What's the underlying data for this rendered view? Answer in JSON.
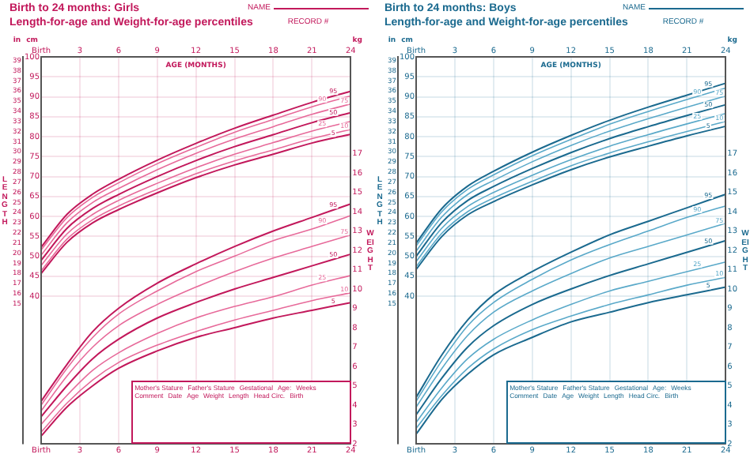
{
  "chart_data": [
    {
      "type": "line",
      "title": "Birth to 24 months: Girls",
      "subtitle": "Length-for-age and Weight-for-age percentiles",
      "xlabel": "AGE (MONTHS)",
      "ylabel": "cm",
      "y2label": "kg",
      "y3label": "in",
      "annotations": [
        "NAME",
        "RECORD #",
        "LENGTH",
        "WEIGHT",
        "Mother's Stature",
        "Father's Stature",
        "Gestational",
        "Age:",
        "Weeks",
        "Comment",
        "Date",
        "Age",
        "Weight",
        "Length",
        "Head Circ.",
        "Birth"
      ],
      "x": [
        0,
        2,
        4,
        6,
        9,
        12,
        15,
        18,
        21,
        24
      ],
      "xlim": [
        0,
        24
      ],
      "xticks": [
        {
          "value": 0,
          "label": "Birth"
        },
        3,
        6,
        9,
        12,
        15,
        18,
        21,
        24
      ],
      "x2lim": [
        0,
        24
      ],
      "x2ticks": [
        {
          "value": 0,
          "label": "Birth"
        },
        3,
        6,
        9,
        12,
        15,
        18,
        21,
        24
      ],
      "ylim": [
        3,
        100
      ],
      "yticks": [
        40,
        45,
        50,
        55,
        60,
        65,
        70,
        75,
        80,
        85,
        90,
        95,
        100
      ],
      "y2lim": [
        2,
        22
      ],
      "y2ticks": [
        2,
        3,
        4,
        5,
        6,
        7,
        8,
        9,
        10,
        11,
        12,
        13,
        14,
        15,
        16,
        17
      ],
      "y3lim": [
        1.181,
        39.37
      ],
      "y3ticks": [
        15,
        16,
        17,
        18,
        19,
        20,
        21,
        22,
        23,
        24,
        25,
        26,
        27,
        28,
        29,
        30,
        31,
        32,
        33,
        34,
        35,
        36,
        37,
        38,
        39
      ],
      "grid": true,
      "legend": false,
      "marker": "none",
      "line_style": "solid",
      "series": [
        {
          "name": "95",
          "color": "#c2185b",
          "axis": "y",
          "values": [
            52.3,
            60.5,
            65.6,
            69.3,
            74.1,
            78.3,
            82.1,
            85.4,
            88.6,
            91.4
          ]
        },
        {
          "name": "90",
          "color": "#e76a9a",
          "axis": "y",
          "values": [
            51.6,
            59.7,
            64.8,
            68.4,
            73.2,
            77.3,
            81.1,
            84.3,
            87.5,
            90.2
          ]
        },
        {
          "name": "75",
          "color": "#e76a9a",
          "axis": "y",
          "values": [
            50.3,
            58.4,
            63.5,
            67.0,
            71.7,
            75.8,
            79.4,
            82.5,
            85.6,
            88.2
          ]
        },
        {
          "name": "50",
          "color": "#c2185b",
          "axis": "y",
          "values": [
            49,
            57,
            62,
            65.5,
            70,
            74,
            77.5,
            80.5,
            83.5,
            86
          ]
        },
        {
          "name": "25",
          "color": "#e76a9a",
          "axis": "y",
          "values": [
            47.7,
            55.6,
            60.5,
            64.0,
            68.3,
            72.2,
            75.6,
            78.5,
            81.4,
            83.8
          ]
        },
        {
          "name": "10",
          "color": "#e76a9a",
          "axis": "y",
          "values": [
            46.4,
            54.3,
            59.2,
            62.6,
            66.8,
            70.7,
            73.9,
            76.7,
            79.5,
            81.8
          ]
        },
        {
          "name": "5",
          "color": "#c2185b",
          "axis": "y",
          "values": [
            45.7,
            53.5,
            58.4,
            61.7,
            65.9,
            69.7,
            72.9,
            75.6,
            78.4,
            80.6
          ]
        },
        {
          "name": "95",
          "color": "#c2185b",
          "axis": "y2",
          "values": [
            4.2,
            6.1,
            7.8,
            9.0,
            10.3,
            11.3,
            12.2,
            13.0,
            13.7,
            14.4
          ]
        },
        {
          "name": "90",
          "color": "#e76a9a",
          "axis": "y2",
          "values": [
            4.0,
            5.9,
            7.5,
            8.7,
            9.9,
            10.9,
            11.7,
            12.5,
            13.1,
            13.8
          ]
        },
        {
          "name": "75",
          "color": "#e76a9a",
          "axis": "y2",
          "values": [
            3.7,
            5.5,
            7.0,
            8.1,
            9.2,
            10.1,
            10.9,
            11.6,
            12.2,
            12.8
          ]
        },
        {
          "name": "50",
          "color": "#c2185b",
          "axis": "y2",
          "values": [
            3.4,
            5.0,
            6.4,
            7.4,
            8.5,
            9.3,
            10.0,
            10.6,
            11.2,
            11.8
          ]
        },
        {
          "name": "25",
          "color": "#e76a9a",
          "axis": "y2",
          "values": [
            3.0,
            4.5,
            5.8,
            6.7,
            7.7,
            8.5,
            9.1,
            9.6,
            10.2,
            10.7
          ]
        },
        {
          "name": "10",
          "color": "#e76a9a",
          "axis": "y2",
          "values": [
            2.6,
            4.1,
            5.3,
            6.2,
            7.1,
            7.8,
            8.4,
            8.9,
            9.4,
            9.8
          ]
        },
        {
          "name": "5",
          "color": "#c2185b",
          "axis": "y2",
          "values": [
            2.4,
            3.9,
            5.0,
            5.9,
            6.8,
            7.5,
            8.0,
            8.5,
            8.9,
            9.3
          ]
        }
      ]
    },
    {
      "type": "line",
      "title": "Birth to 24 months: Boys",
      "subtitle": "Length-for-age and Weight-for-age percentiles",
      "xlabel": "AGE (MONTHS)",
      "ylabel": "cm",
      "y2label": "kg",
      "y3label": "in",
      "annotations": [
        "NAME",
        "RECORD #",
        "LENGTH",
        "WEIGHT",
        "Mother's Stature",
        "Father's Stature",
        "Gestational",
        "Age:",
        "Weeks",
        "Comment",
        "Date",
        "Age",
        "Weight",
        "Length",
        "Head Circ.",
        "Birth"
      ],
      "x": [
        0,
        2,
        4,
        6,
        9,
        12,
        15,
        18,
        21,
        24
      ],
      "xlim": [
        0,
        24
      ],
      "xticks": [
        {
          "value": 0,
          "label": "Birth"
        },
        3,
        6,
        9,
        12,
        15,
        18,
        21,
        24
      ],
      "x2lim": [
        0,
        24
      ],
      "x2ticks": [
        {
          "value": 0,
          "label": "Birth"
        },
        3,
        6,
        9,
        12,
        15,
        18,
        21,
        24
      ],
      "ylim": [
        3,
        100
      ],
      "yticks": [
        40,
        45,
        50,
        55,
        60,
        65,
        70,
        75,
        80,
        85,
        90,
        95,
        100
      ],
      "y2lim": [
        2,
        22
      ],
      "y2ticks": [
        2,
        3,
        4,
        5,
        6,
        7,
        8,
        9,
        10,
        11,
        12,
        13,
        14,
        15,
        16,
        17
      ],
      "y3lim": [
        1.181,
        39.37
      ],
      "y3ticks": [
        15,
        16,
        17,
        18,
        19,
        20,
        21,
        22,
        23,
        24,
        25,
        26,
        27,
        28,
        29,
        30,
        31,
        32,
        33,
        34,
        35,
        36,
        37,
        38,
        39
      ],
      "grid": true,
      "legend": false,
      "marker": "none",
      "line_style": "solid",
      "series": [
        {
          "name": "95",
          "color": "#1b6a8f",
          "axis": "y",
          "values": [
            53.3,
            62.0,
            67.6,
            71.3,
            76.1,
            80.3,
            84.1,
            87.4,
            90.4,
            93.4
          ]
        },
        {
          "name": "90",
          "color": "#5aa9c9",
          "axis": "y",
          "values": [
            52.6,
            61.2,
            66.8,
            70.4,
            75.2,
            79.3,
            83.1,
            86.3,
            89.3,
            92.2
          ]
        },
        {
          "name": "75",
          "color": "#5aa9c9",
          "axis": "y",
          "values": [
            51.3,
            59.9,
            65.5,
            69.0,
            73.7,
            77.8,
            81.4,
            84.5,
            87.4,
            90.2
          ]
        },
        {
          "name": "50",
          "color": "#1b6a8f",
          "axis": "y",
          "values": [
            50,
            58.5,
            64,
            67.5,
            72,
            76,
            79.5,
            82.5,
            85.3,
            88
          ]
        },
        {
          "name": "25",
          "color": "#5aa9c9",
          "axis": "y",
          "values": [
            48.7,
            57.1,
            62.5,
            66.0,
            70.3,
            74.2,
            77.6,
            80.5,
            83.2,
            85.8
          ]
        },
        {
          "name": "10",
          "color": "#5aa9c9",
          "axis": "y",
          "values": [
            47.4,
            55.8,
            61.2,
            64.6,
            68.8,
            72.7,
            75.9,
            78.7,
            81.3,
            83.8
          ]
        },
        {
          "name": "5",
          "color": "#1b6a8f",
          "axis": "y",
          "values": [
            46.7,
            55.0,
            60.4,
            63.7,
            67.9,
            71.7,
            74.9,
            77.6,
            80.2,
            82.6
          ]
        },
        {
          "name": "95",
          "color": "#1b6a8f",
          "axis": "y2",
          "values": [
            4.4,
            6.6,
            8.4,
            9.7,
            10.9,
            11.9,
            12.8,
            13.5,
            14.2,
            14.9
          ]
        },
        {
          "name": "90",
          "color": "#5aa9c9",
          "axis": "y2",
          "values": [
            4.2,
            6.3,
            8.1,
            9.3,
            10.5,
            11.5,
            12.3,
            13.0,
            13.7,
            14.3
          ]
        },
        {
          "name": "75",
          "color": "#5aa9c9",
          "axis": "y2",
          "values": [
            3.9,
            5.9,
            7.6,
            8.8,
            9.9,
            10.8,
            11.6,
            12.2,
            12.8,
            13.4
          ]
        },
        {
          "name": "50",
          "color": "#1b6a8f",
          "axis": "y2",
          "values": [
            3.5,
            5.4,
            7.0,
            8.1,
            9.2,
            10.0,
            10.7,
            11.3,
            11.9,
            12.5
          ]
        },
        {
          "name": "25",
          "color": "#5aa9c9",
          "axis": "y2",
          "values": [
            3.1,
            4.9,
            6.4,
            7.4,
            8.4,
            9.2,
            9.9,
            10.4,
            10.9,
            11.4
          ]
        },
        {
          "name": "10",
          "color": "#5aa9c9",
          "axis": "y2",
          "values": [
            2.8,
            4.5,
            5.9,
            6.9,
            7.9,
            8.6,
            9.2,
            9.7,
            10.2,
            10.6
          ]
        },
        {
          "name": "5",
          "color": "#1b6a8f",
          "axis": "y2",
          "values": [
            2.5,
            4.3,
            5.6,
            6.6,
            7.5,
            8.3,
            8.8,
            9.3,
            9.7,
            10.1
          ]
        }
      ]
    }
  ]
}
